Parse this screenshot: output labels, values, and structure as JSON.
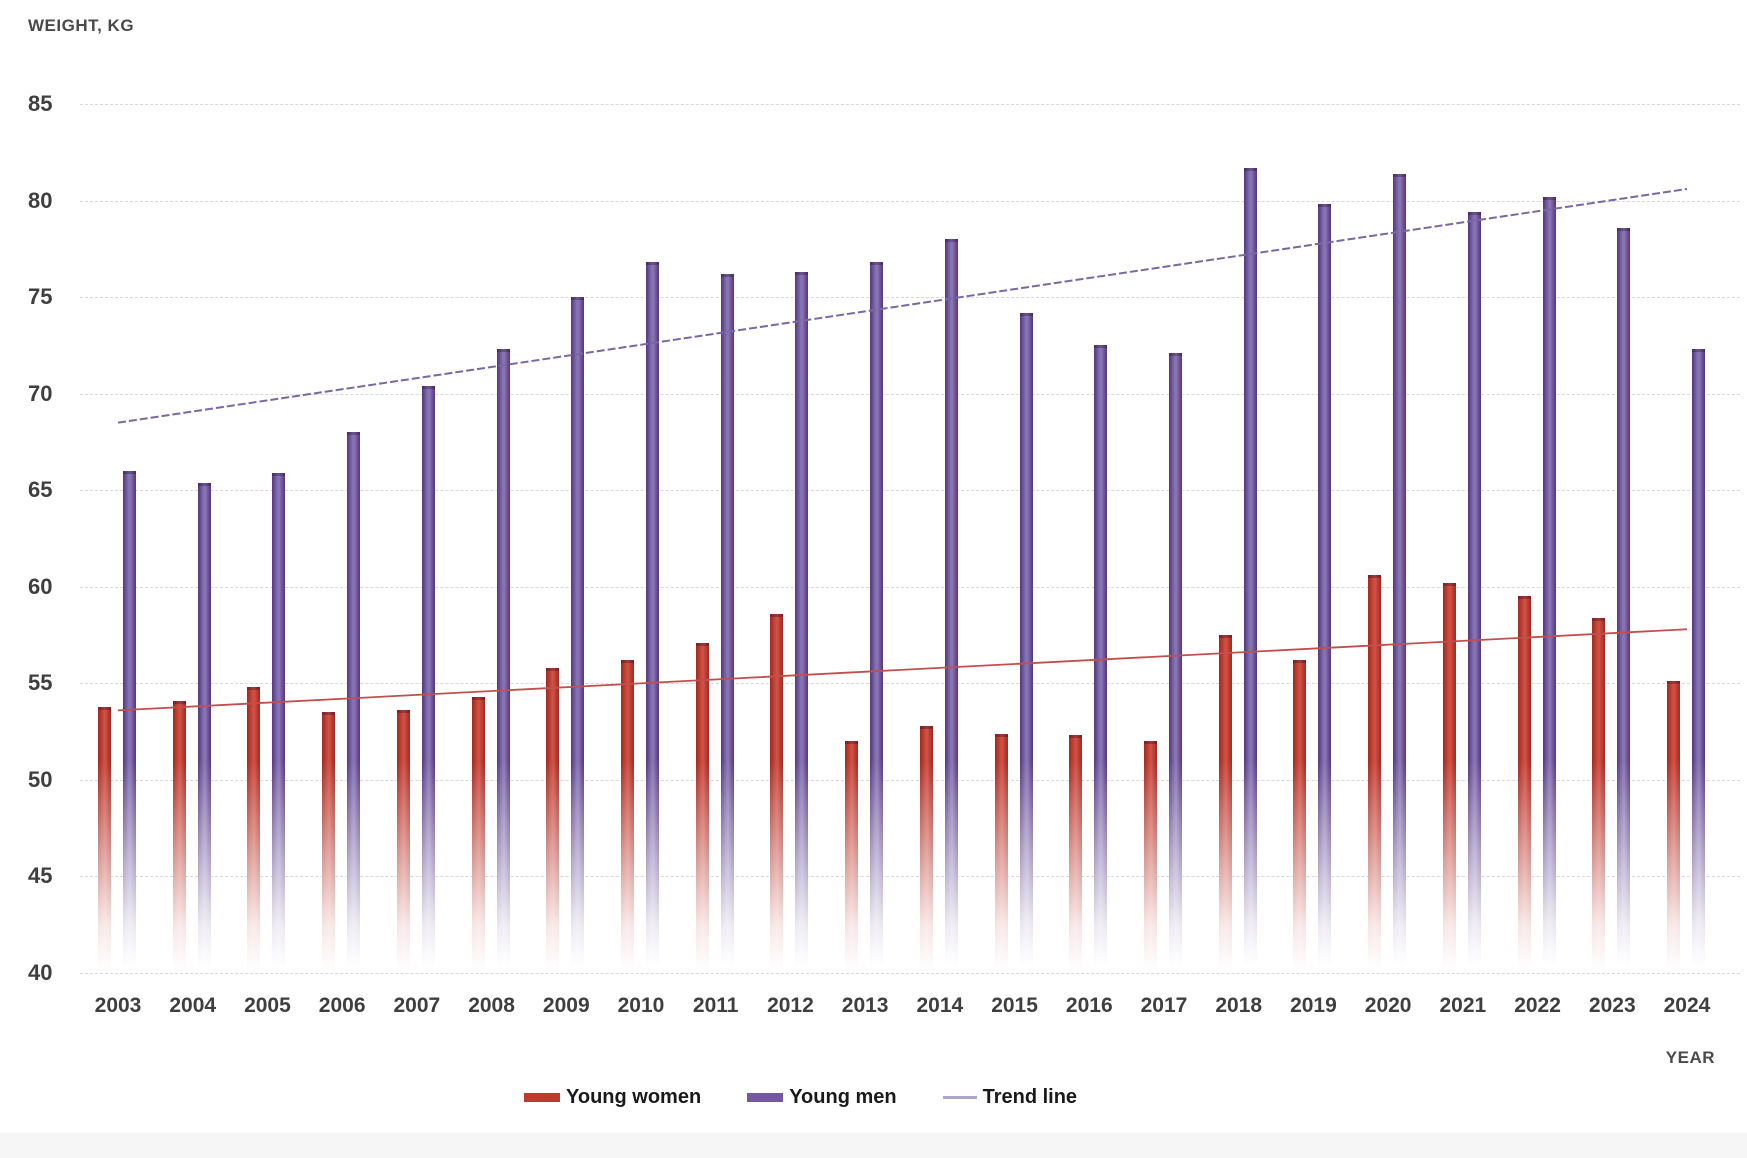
{
  "title": "WEIGHT, KG",
  "chart_data": {
    "type": "bar",
    "title": "WEIGHT, KG",
    "xlabel": "YEAR",
    "ylabel": "WEIGHT, KG",
    "ylim": [
      40,
      85
    ],
    "yticks": [
      85,
      80,
      75,
      70,
      65,
      60,
      55,
      50,
      45,
      40
    ],
    "grid": "horizontal-dashed",
    "legend_position": "bottom",
    "bar_style": "thin bars fading to white toward the baseline",
    "categories": [
      "2003",
      "2004",
      "2005",
      "2006",
      "2007",
      "2008",
      "2009",
      "2010",
      "2011",
      "2012",
      "2013",
      "2014",
      "2015",
      "2016",
      "2017",
      "2018",
      "2019",
      "2020",
      "2021",
      "2022",
      "2023",
      "2024"
    ],
    "series": [
      {
        "name": "Young women",
        "color": "#bf3b30",
        "values": [
          53.8,
          54.1,
          54.8,
          53.5,
          53.6,
          54.3,
          55.8,
          56.2,
          57.1,
          58.6,
          52.0,
          52.8,
          52.4,
          52.3,
          52.0,
          57.5,
          56.2,
          60.6,
          60.2,
          59.5,
          58.4,
          55.1
        ]
      },
      {
        "name": "Young men",
        "color": "#75589e",
        "values": [
          66.0,
          65.4,
          65.9,
          68.0,
          70.4,
          72.3,
          75.0,
          76.8,
          76.2,
          76.3,
          76.8,
          78.0,
          74.2,
          72.5,
          72.1,
          81.7,
          79.8,
          81.4,
          79.4,
          80.2,
          78.6,
          72.3
        ]
      }
    ],
    "trend_lines": [
      {
        "name": "Trend line (young men)",
        "color": "#7a68a3",
        "dashed": true,
        "start": {
          "x": "2003",
          "y": 68.5
        },
        "end": {
          "x": "2024",
          "y": 80.6
        }
      },
      {
        "name": "Trend line (young women)",
        "color": "#c0504d",
        "dashed": false,
        "start": {
          "x": "2003",
          "y": 53.6
        },
        "end": {
          "x": "2024",
          "y": 57.8
        }
      }
    ]
  },
  "legend": {
    "items": [
      {
        "label": "Young women",
        "swatch": "bar",
        "color": "#bf3b30"
      },
      {
        "label": "Young men",
        "swatch": "bar",
        "color": "#75589e"
      },
      {
        "label": "Trend line",
        "swatch": "line",
        "color": "#b2a5cb"
      }
    ]
  },
  "colors": {
    "background": "#ffffff",
    "gridline": "#d8d8d8",
    "axis_text": "#3f3f3f",
    "title_text": "#4a4a4a",
    "legend_text": "#1a1a1a",
    "women_bar_edge": "#9c2d25",
    "women_bar_center": "#ce5347",
    "men_bar_edge": "#55387f",
    "men_bar_center": "#8a77b4",
    "bottom_strip": "#f6f6f6"
  }
}
